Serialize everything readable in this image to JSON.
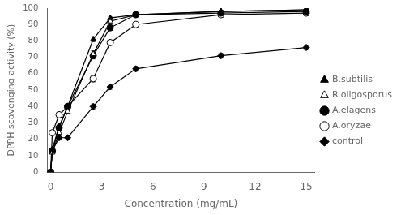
{
  "chart_data": {
    "type": "line",
    "xlabel": "Concentration (mg/mL)",
    "ylabel": "DPPH scavenging activity (%)",
    "x": [
      0,
      0.1,
      0.5,
      1.0,
      2.5,
      3.5,
      5.0,
      10.0,
      15.0
    ],
    "series": [
      {
        "name": "B.subtilis",
        "color": "black",
        "marker": "triangle",
        "line_style": "solid",
        "values": [
          0,
          14,
          28,
          40,
          81,
          94,
          96,
          98,
          99
        ],
        "yerr": [
          0,
          0.8,
          1,
          1.5,
          1.5,
          0.8,
          0.5,
          0.5,
          0.5
        ]
      },
      {
        "name": "R.oligosporus",
        "color": "black",
        "marker": "triangle-open",
        "line_style": "solid",
        "values": [
          0,
          12,
          24,
          37,
          72,
          92,
          96,
          98,
          99
        ],
        "yerr": [
          0,
          0.8,
          1,
          1.5,
          2,
          1.2,
          0.5,
          0.5,
          0.5
        ]
      },
      {
        "name": "A.elagens",
        "color": "black",
        "marker": "circle",
        "line_style": "solid",
        "values": [
          0,
          13,
          27,
          40,
          71,
          88,
          96,
          97,
          98
        ],
        "yerr": [
          0,
          0.8,
          1,
          1.5,
          2,
          1.5,
          0.5,
          0.5,
          0.5
        ]
      },
      {
        "name": "A.oryzae",
        "color": "black",
        "marker": "circle-open",
        "line_style": "solid",
        "values": [
          0,
          24,
          35,
          40,
          57,
          79,
          90,
          96,
          97
        ],
        "yerr": [
          0,
          1.2,
          1,
          1.5,
          2,
          1.5,
          1,
          0.5,
          0.5
        ]
      },
      {
        "name": "control",
        "color": "black",
        "marker": "diamond",
        "line_style": "solid",
        "values": [
          0,
          13,
          21,
          21,
          40,
          52,
          63,
          71,
          76
        ],
        "yerr": [
          0,
          0.8,
          1,
          1,
          1.5,
          1.5,
          1.5,
          1.5,
          1.5
        ]
      }
    ],
    "xlim": [
      -0.2,
      15.5
    ],
    "ylim": [
      0,
      100
    ],
    "xticks": [
      0,
      3,
      6,
      9,
      12,
      15
    ],
    "yticks": [
      0,
      10,
      20,
      30,
      40,
      50,
      60,
      70,
      80,
      90,
      100
    ],
    "grid": false,
    "legend": "right"
  }
}
